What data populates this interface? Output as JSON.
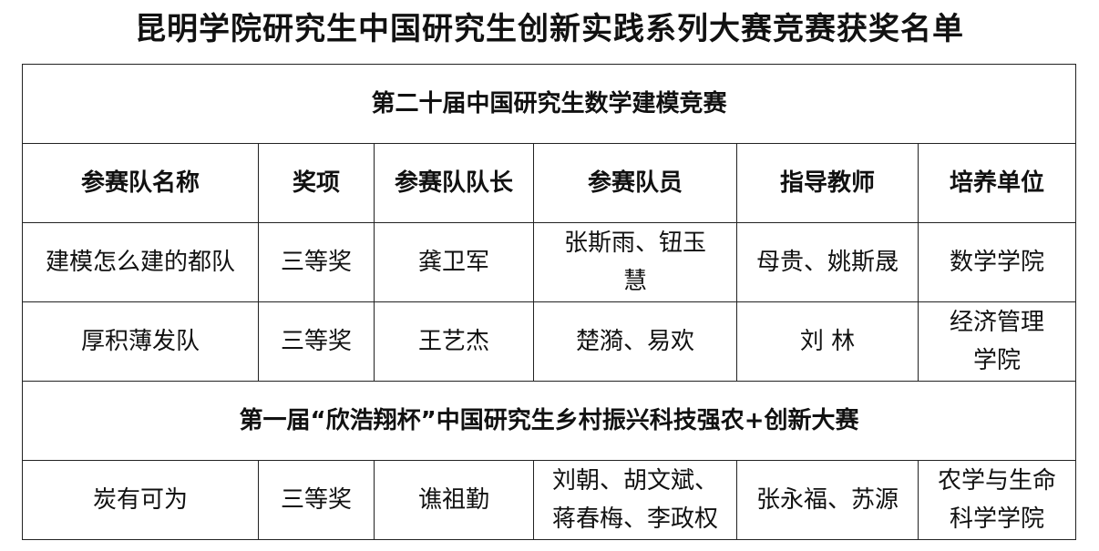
{
  "title": "昆明学院研究生中国研究生创新实践系列大赛竞赛获奖名单",
  "headers": [
    "参赛队名称",
    "奖项",
    "参赛队队长",
    "参赛队员",
    "指导教师",
    "培养单位"
  ],
  "sections": [
    {
      "name": "第二十届中国研究生数学建模竞赛",
      "rows": [
        [
          [
            "建模怎么建的都队"
          ],
          [
            "三等奖"
          ],
          [
            "龚卫军"
          ],
          [
            "张斯雨、钮玉",
            "慧"
          ],
          [
            "母贵、姚斯晟"
          ],
          [
            "数学学院"
          ]
        ],
        [
          [
            "厚积薄发队"
          ],
          [
            "三等奖"
          ],
          [
            "王艺杰"
          ],
          [
            "楚漪、易欢"
          ],
          [
            "刘  林"
          ],
          [
            "经济管理",
            "学院"
          ]
        ]
      ]
    },
    {
      "name": "第一届“欣浩翔杯”中国研究生乡村振兴科技强农+创新大赛",
      "rows": [
        [
          [
            "炭有可为"
          ],
          [
            "三等奖"
          ],
          [
            "谯祖勤"
          ],
          [
            "刘朝、胡文斌、",
            "蒋春梅、李政权"
          ],
          [
            "张永福、苏源"
          ],
          [
            "农学与生命",
            "科学学院"
          ]
        ]
      ]
    }
  ]
}
